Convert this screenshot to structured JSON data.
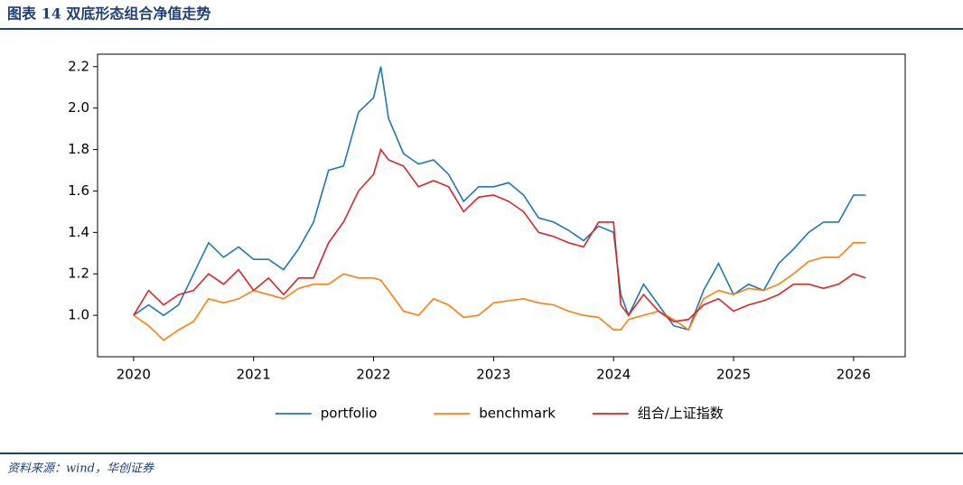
{
  "chart_data": {
    "type": "line",
    "title": "图表 14   双底形态组合净值走势",
    "source": "资料来源：wind，华创证券",
    "x": [
      2020,
      2020.125,
      2020.25,
      2020.375,
      2020.5,
      2020.625,
      2020.75,
      2020.875,
      2021,
      2021.125,
      2021.25,
      2021.375,
      2021.5,
      2021.625,
      2021.75,
      2021.875,
      2022,
      2022.06,
      2022.125,
      2022.25,
      2022.375,
      2022.5,
      2022.625,
      2022.75,
      2022.875,
      2023,
      2023.125,
      2023.25,
      2023.375,
      2023.5,
      2023.625,
      2023.75,
      2023.875,
      2024,
      2024.06,
      2024.125,
      2024.25,
      2024.375,
      2024.5,
      2024.625,
      2024.75,
      2024.875,
      2025,
      2025.125,
      2025.25,
      2025.375,
      2025.5,
      2025.625,
      2025.75,
      2025.875,
      2026,
      2026.1
    ],
    "series": [
      {
        "name": "portfolio",
        "color": "#1f77b4",
        "values": [
          1.0,
          1.05,
          1.0,
          1.05,
          1.2,
          1.35,
          1.28,
          1.33,
          1.27,
          1.27,
          1.22,
          1.32,
          1.45,
          1.7,
          1.72,
          1.98,
          2.05,
          2.2,
          1.95,
          1.78,
          1.73,
          1.75,
          1.68,
          1.55,
          1.62,
          1.62,
          1.64,
          1.58,
          1.47,
          1.45,
          1.41,
          1.36,
          1.43,
          1.4,
          1.1,
          1.0,
          1.15,
          1.05,
          0.95,
          0.93,
          1.12,
          1.25,
          1.1,
          1.15,
          1.12,
          1.25,
          1.32,
          1.4,
          1.45,
          1.45,
          1.58,
          1.58
        ]
      },
      {
        "name": "benchmark",
        "color": "#ff7f0e",
        "values": [
          1.0,
          0.95,
          0.88,
          0.93,
          0.97,
          1.08,
          1.06,
          1.08,
          1.12,
          1.1,
          1.08,
          1.13,
          1.15,
          1.15,
          1.2,
          1.18,
          1.18,
          1.17,
          1.12,
          1.02,
          1.0,
          1.08,
          1.05,
          0.99,
          1.0,
          1.06,
          1.07,
          1.08,
          1.06,
          1.05,
          1.02,
          1.0,
          0.99,
          0.93,
          0.93,
          0.98,
          1.0,
          1.02,
          0.98,
          0.93,
          1.08,
          1.12,
          1.1,
          1.13,
          1.12,
          1.15,
          1.2,
          1.26,
          1.28,
          1.28,
          1.35,
          1.35
        ]
      },
      {
        "name": "组合/上证指数",
        "color": "#d62728",
        "values": [
          1.0,
          1.12,
          1.05,
          1.1,
          1.12,
          1.2,
          1.15,
          1.22,
          1.12,
          1.18,
          1.1,
          1.18,
          1.18,
          1.35,
          1.45,
          1.6,
          1.68,
          1.8,
          1.75,
          1.72,
          1.62,
          1.65,
          1.62,
          1.5,
          1.57,
          1.58,
          1.55,
          1.5,
          1.4,
          1.38,
          1.35,
          1.33,
          1.45,
          1.45,
          1.05,
          1.0,
          1.1,
          1.02,
          0.97,
          0.98,
          1.05,
          1.08,
          1.02,
          1.05,
          1.07,
          1.1,
          1.15,
          1.15,
          1.13,
          1.15,
          1.2,
          1.18
        ]
      }
    ],
    "xlim": [
      2019.7,
      2026.43
    ],
    "xticks": [
      2020,
      2021,
      2022,
      2023,
      2024,
      2025,
      2026
    ],
    "ylim": [
      0.8,
      2.26
    ],
    "yticks": [
      {
        "value": 1,
        "label": "1.0"
      },
      1.2,
      1.4,
      1.6,
      1.8,
      {
        "value": 2,
        "label": "2.0"
      },
      2.2
    ],
    "legend": "bottom"
  }
}
